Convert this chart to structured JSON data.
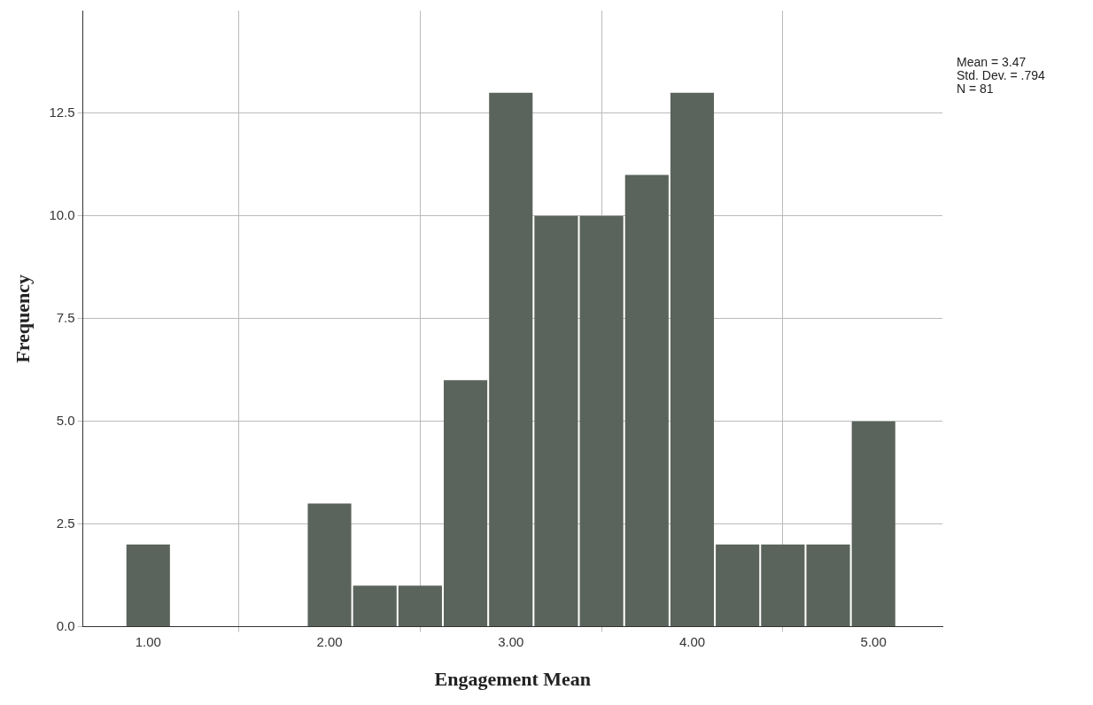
{
  "chart_data": {
    "type": "histogram",
    "xlabel": "Engagement Mean",
    "ylabel": "Frequency",
    "bins": [
      0.875,
      1.125,
      1.375,
      1.625,
      1.875,
      2.125,
      2.375,
      2.625,
      2.875,
      3.125,
      3.375,
      3.625,
      3.875,
      4.125,
      4.375,
      4.625,
      4.875,
      5.125
    ],
    "values": [
      2,
      0,
      0,
      0,
      3,
      1,
      1,
      6,
      13,
      10,
      10,
      11,
      13,
      2,
      2,
      2,
      5
    ],
    "color": "#5a635c",
    "xlim": [
      0.64,
      5.38
    ],
    "xticks": [
      {
        "value": 1,
        "label": "1.00"
      },
      {
        "value": 2,
        "label": "2.00"
      },
      {
        "value": 3,
        "label": "3.00"
      },
      {
        "value": 4,
        "label": "4.00"
      },
      {
        "value": 5,
        "label": "5.00"
      }
    ],
    "ylim": [
      0,
      15
    ],
    "yticks": [
      {
        "value": 0,
        "label": "0.0"
      },
      {
        "value": 2.5,
        "label": "2.5"
      },
      {
        "value": 5,
        "label": "5.0"
      },
      {
        "value": 7.5,
        "label": "7.5"
      },
      {
        "value": 10,
        "label": "10.0"
      },
      {
        "value": 12.5,
        "label": "12.5"
      }
    ],
    "grid": true,
    "annotations": [
      "Mean = 3.47",
      "Std. Dev. = .794",
      "N = 81"
    ]
  }
}
